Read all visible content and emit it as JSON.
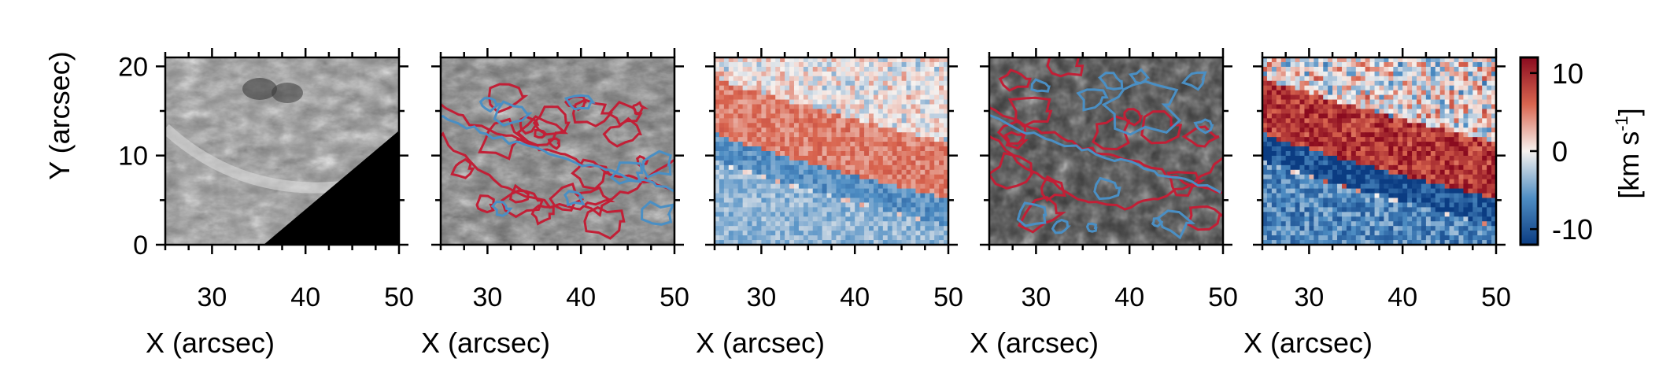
{
  "figure": {
    "panels": [
      {
        "id": "p1",
        "kind": "grayscale-intensity",
        "xlabel": "X (arcsec)",
        "ylabel": "Y (arcsec)"
      },
      {
        "id": "p2",
        "kind": "grayscale-with-contours",
        "xlabel": "X (arcsec)"
      },
      {
        "id": "p3",
        "kind": "doppler-velocity-map",
        "xlabel": "X (arcsec)"
      },
      {
        "id": "p4",
        "kind": "grayscale-with-contours",
        "xlabel": "X (arcsec)"
      },
      {
        "id": "p5",
        "kind": "doppler-velocity-map",
        "xlabel": "X (arcsec)"
      }
    ],
    "colorbar": {
      "label_main": "[km s",
      "label_sup": "-1",
      "label_end": "]",
      "ticks": [
        10,
        0,
        -10
      ],
      "range": [
        -12,
        12
      ],
      "colors": {
        "negative": "#0b3c82",
        "mid": "#f7f2ef",
        "positive": "#8a0b1f"
      }
    },
    "contour_colors": {
      "red": "#c21f36",
      "blue": "#4a8fc4"
    }
  },
  "chart_data": [
    {
      "type": "heatmap",
      "title": "",
      "xlabel": "X (arcsec)",
      "ylabel": "Y (arcsec)",
      "xlim": [
        25,
        50
      ],
      "ylim": [
        0,
        21
      ],
      "xticks": [
        30,
        40,
        50
      ],
      "yticks": [
        0,
        10,
        20
      ]
    },
    {
      "type": "heatmap",
      "title": "",
      "xlabel": "X (arcsec)",
      "xlim": [
        25,
        50
      ],
      "ylim": [
        0,
        21
      ],
      "xticks": [
        30,
        40,
        50
      ],
      "contours": [
        "red",
        "blue"
      ]
    },
    {
      "type": "heatmap",
      "title": "",
      "xlabel": "X (arcsec)",
      "xlim": [
        25,
        50
      ],
      "ylim": [
        0,
        21
      ],
      "xticks": [
        30,
        40,
        50
      ],
      "colorscale": "blue-white-red"
    },
    {
      "type": "heatmap",
      "title": "",
      "xlabel": "X (arcsec)",
      "xlim": [
        25,
        50
      ],
      "ylim": [
        0,
        21
      ],
      "xticks": [
        30,
        40,
        50
      ],
      "contours": [
        "red",
        "blue"
      ]
    },
    {
      "type": "heatmap",
      "title": "",
      "xlabel": "X (arcsec)",
      "xlim": [
        25,
        50
      ],
      "ylim": [
        0,
        21
      ],
      "xticks": [
        30,
        40,
        50
      ],
      "colorscale": "blue-white-red",
      "colorbar_ticks": [
        10,
        0,
        -10
      ],
      "colorbar_label": "[km s-1]"
    }
  ]
}
